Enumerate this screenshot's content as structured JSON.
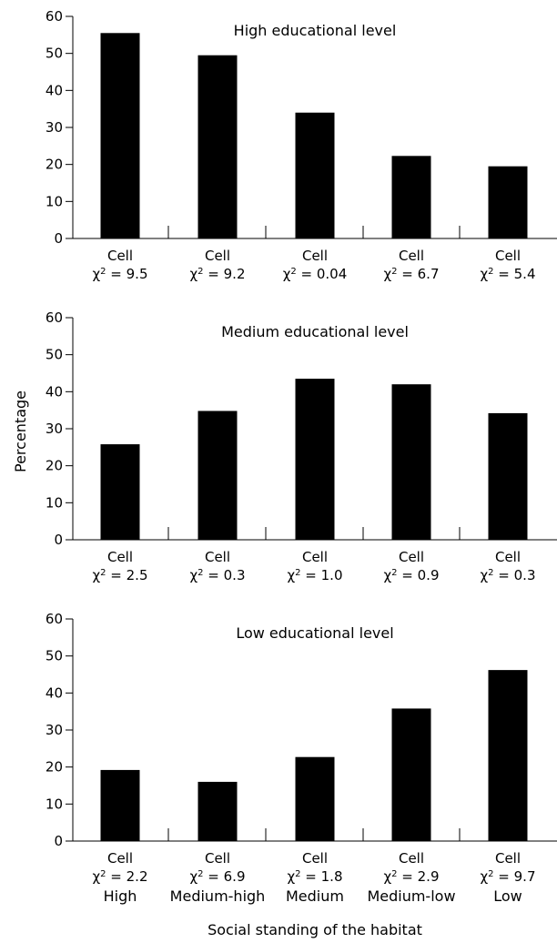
{
  "colors": {
    "bar": "#000000",
    "axis": "#000000",
    "background": "#ffffff"
  },
  "chart_data": {
    "type": "bar",
    "ylabel": "Percentage",
    "xlabel": "Social standing of the habitat",
    "categories": [
      "High",
      "Medium-high",
      "Medium",
      "Medium-low",
      "Low"
    ],
    "ylim": [
      0,
      60
    ],
    "yticks": [
      "0",
      "10",
      "20",
      "30",
      "40",
      "50",
      "60"
    ],
    "legend": "none",
    "grid": false,
    "panels": [
      {
        "title": "High educational level",
        "values": [
          55.5,
          49.5,
          34,
          22.3,
          19.5
        ],
        "cell_labels": [
          "Cell",
          "Cell",
          "Cell",
          "Cell",
          "Cell"
        ],
        "chi_values": [
          "= 9.5",
          "= 9.2",
          "= 0.04",
          "= 6.7",
          "= 5.4"
        ]
      },
      {
        "title": "Medium educational level",
        "values": [
          25.8,
          34.8,
          43.5,
          42,
          34.2
        ],
        "cell_labels": [
          "Cell",
          "Cell",
          "Cell",
          "Cell",
          "Cell"
        ],
        "chi_values": [
          "= 2.5",
          "= 0.3",
          "= 1.0",
          "= 0.9",
          "= 0.3"
        ]
      },
      {
        "title": "Low educational level",
        "values": [
          19.2,
          16,
          22.7,
          35.8,
          46.2
        ],
        "cell_labels": [
          "Cell",
          "Cell",
          "Cell",
          "Cell",
          "Cell"
        ],
        "chi_values": [
          "= 2.2",
          "= 6.9",
          "= 1.8",
          "= 2.9",
          "= 9.7"
        ]
      }
    ],
    "chi_symbol": "χ",
    "chi_superscript": "2"
  }
}
